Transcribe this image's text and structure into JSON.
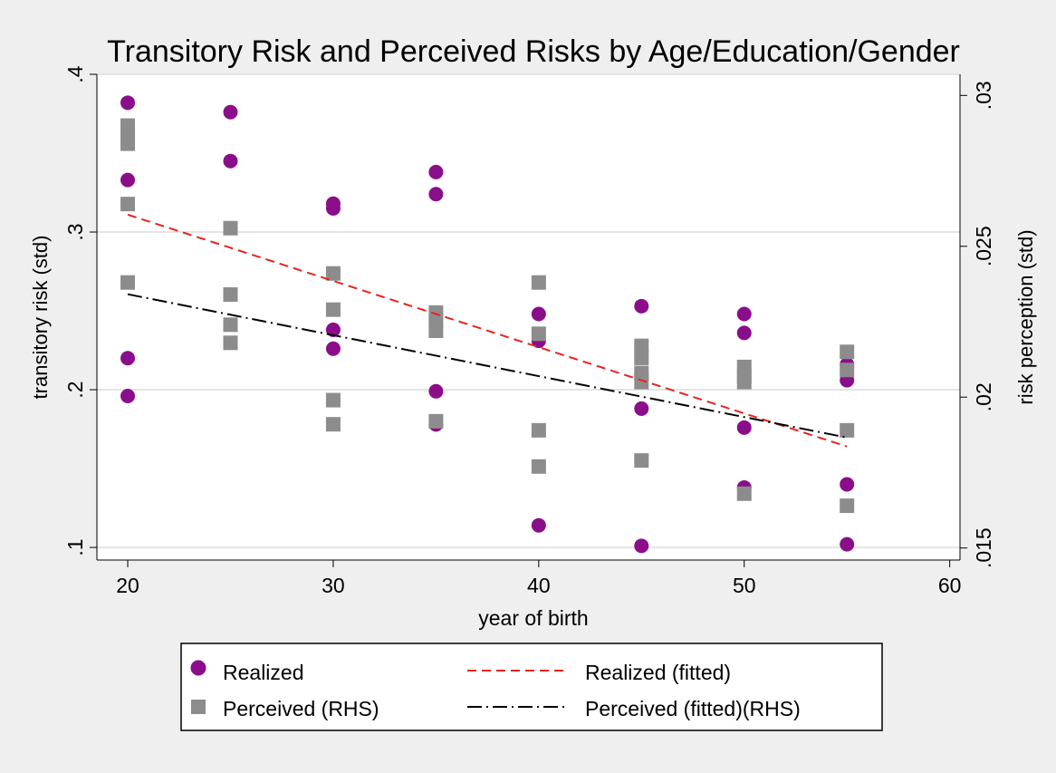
{
  "chart_data": {
    "type": "scatter",
    "title": "Transitory Risk and Perceived Risks by Age/Education/Gender",
    "xlabel": "year of birth",
    "ylabel": "transitory risk (std)",
    "y2label": "risk perception (std)",
    "xlim": [
      18.5,
      60.5
    ],
    "ylim": [
      0.092,
      0.4
    ],
    "y2lim": [
      0.0146,
      0.0307
    ],
    "x_ticks": [
      20,
      30,
      40,
      50,
      60
    ],
    "x_tick_labels": [
      "20",
      "30",
      "40",
      "50",
      "60"
    ],
    "y_ticks": [
      0.1,
      0.2,
      0.3,
      0.4
    ],
    "y_tick_labels": [
      ".1",
      ".2",
      ".3",
      ".4"
    ],
    "y2_ticks": [
      0.015,
      0.02,
      0.025,
      0.03
    ],
    "y2_tick_labels": [
      ".015",
      ".02",
      ".025",
      ".03"
    ],
    "grid": true,
    "legend_position": "bottom",
    "series": [
      {
        "name": "Realized",
        "kind": "scatter",
        "marker": "circle",
        "axis": "left",
        "color": "#8a0e8a",
        "points": [
          [
            20,
            0.382
          ],
          [
            20,
            0.333
          ],
          [
            20,
            0.22
          ],
          [
            20,
            0.196
          ],
          [
            25,
            0.376
          ],
          [
            25,
            0.345
          ],
          [
            30,
            0.318
          ],
          [
            30,
            0.315
          ],
          [
            30,
            0.238
          ],
          [
            30,
            0.226
          ],
          [
            35,
            0.338
          ],
          [
            35,
            0.324
          ],
          [
            35,
            0.199
          ],
          [
            35,
            0.178
          ],
          [
            40,
            0.248
          ],
          [
            40,
            0.231
          ],
          [
            40,
            0.114
          ],
          [
            45,
            0.253
          ],
          [
            45,
            0.21
          ],
          [
            45,
            0.188
          ],
          [
            45,
            0.101
          ],
          [
            50,
            0.248
          ],
          [
            50,
            0.236
          ],
          [
            50,
            0.176
          ],
          [
            50,
            0.138
          ],
          [
            55,
            0.216
          ],
          [
            55,
            0.206
          ],
          [
            55,
            0.14
          ],
          [
            55,
            0.102
          ]
        ]
      },
      {
        "name": "Perceived (RHS)",
        "kind": "scatter",
        "marker": "square",
        "axis": "right",
        "color": "#8c8c8c",
        "points": [
          [
            20,
            0.029
          ],
          [
            20,
            0.0287
          ],
          [
            20,
            0.0284
          ],
          [
            20,
            0.0264
          ],
          [
            20,
            0.0238
          ],
          [
            25,
            0.0256
          ],
          [
            25,
            0.0234
          ],
          [
            25,
            0.0224
          ],
          [
            25,
            0.0218
          ],
          [
            30,
            0.0241
          ],
          [
            30,
            0.0229
          ],
          [
            30,
            0.0199
          ],
          [
            30,
            0.0191
          ],
          [
            35,
            0.0228
          ],
          [
            35,
            0.0225
          ],
          [
            35,
            0.0222
          ],
          [
            35,
            0.0192
          ],
          [
            40,
            0.0238
          ],
          [
            40,
            0.0221
          ],
          [
            40,
            0.0189
          ],
          [
            40,
            0.0177
          ],
          [
            45,
            0.0217
          ],
          [
            45,
            0.0213
          ],
          [
            45,
            0.0208
          ],
          [
            45,
            0.0205
          ],
          [
            45,
            0.0179
          ],
          [
            50,
            0.021
          ],
          [
            50,
            0.0207
          ],
          [
            50,
            0.0205
          ],
          [
            50,
            0.0168
          ],
          [
            55,
            0.0215
          ],
          [
            55,
            0.0209
          ],
          [
            55,
            0.0189
          ],
          [
            55,
            0.0164
          ]
        ]
      },
      {
        "name": "Realized (fitted)",
        "kind": "line",
        "style": "dashed",
        "axis": "left",
        "color": "#e8231e",
        "points": [
          [
            20,
            0.311
          ],
          [
            55,
            0.164
          ]
        ]
      },
      {
        "name": "Perceived (fitted)(RHS)",
        "kind": "line",
        "style": "dashdot",
        "axis": "right",
        "color": "#000000",
        "points": [
          [
            20,
            0.02341
          ],
          [
            55,
            0.01866
          ]
        ]
      }
    ]
  }
}
